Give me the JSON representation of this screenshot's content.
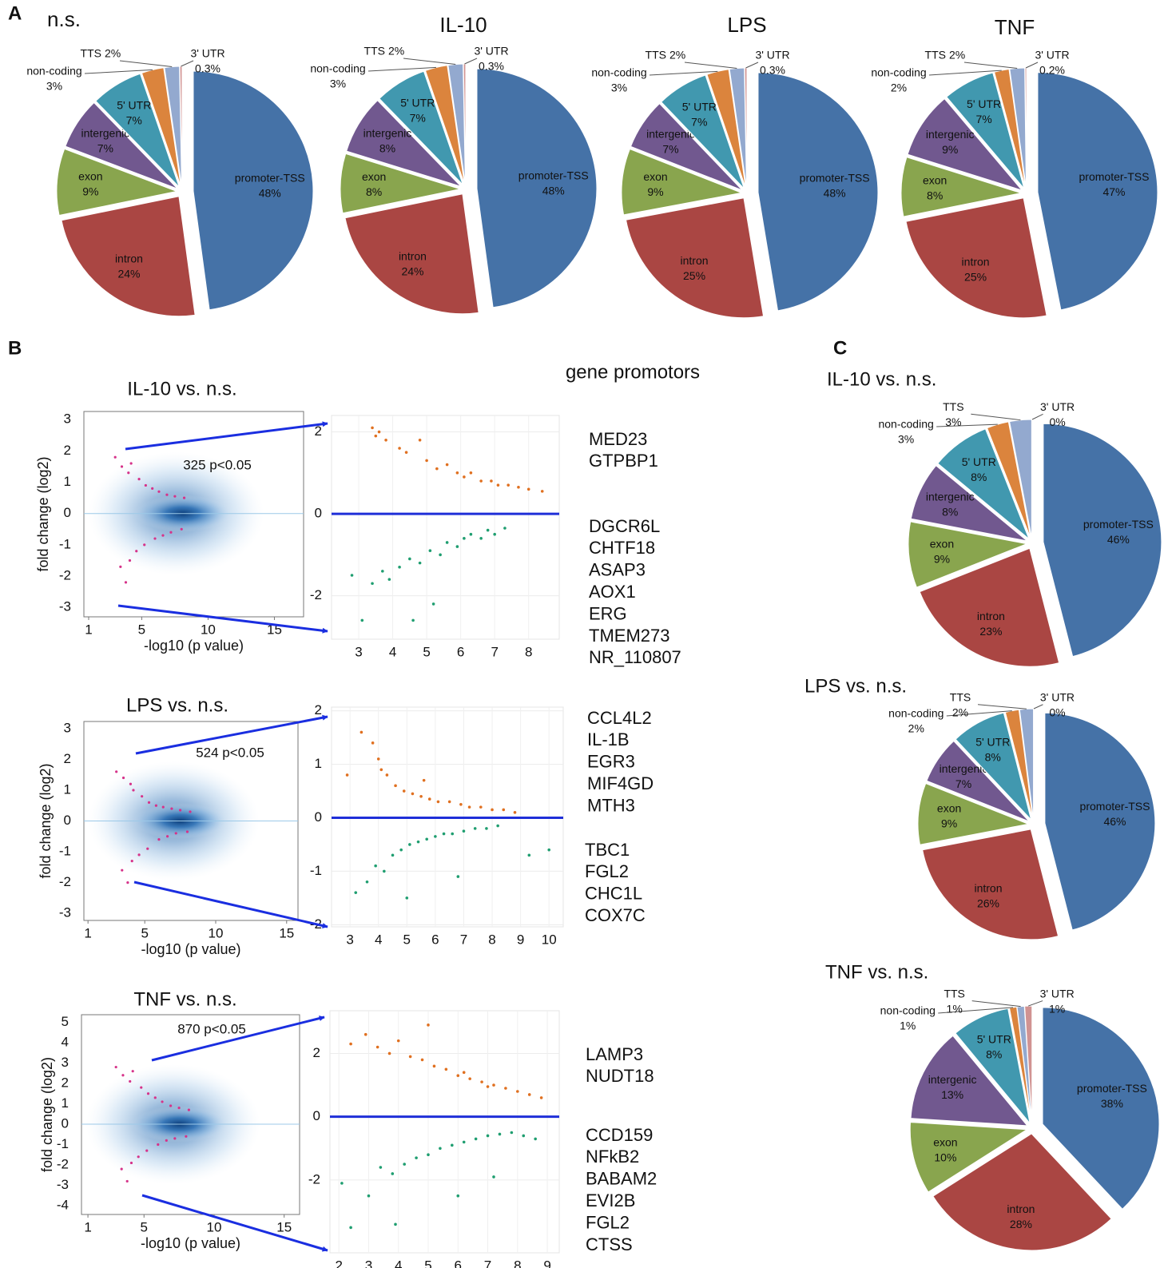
{
  "panels": [
    "A",
    "B",
    "C"
  ],
  "heading": "gene promotors",
  "genes": [
    {
      "up": [
        "MED23",
        "GTPBP1"
      ],
      "down": [
        "DGCR6L",
        "CHTF18",
        "ASAP3",
        "AOX1",
        "ERG",
        "TMEM273",
        "NR_110807"
      ]
    },
    {
      "up": [
        "CCL4L2",
        "IL-1B",
        "EGR3",
        "MIF4GD",
        "MTH3"
      ],
      "down": [
        "TBC1",
        "FGL2",
        "CHC1L",
        "COX7C"
      ]
    },
    {
      "up": [
        "LAMP3",
        "NUDT18"
      ],
      "down": [
        "CCD159",
        "NFkB2",
        "BABAM2",
        "EVI2B",
        "FGL2",
        "CTSS"
      ]
    }
  ],
  "chart_data": [
    {
      "type": "pie",
      "title": "n.s.",
      "categories": [
        "promoter-TSS",
        "intron",
        "exon",
        "intergenic",
        "5' UTR",
        "non-coding",
        "TTS",
        "3' UTR"
      ],
      "values": [
        48,
        24,
        9,
        7,
        7,
        3,
        2,
        0.3
      ],
      "value_labels": [
        "48%",
        "24%",
        "9%",
        "7%",
        "7%",
        "3%",
        "2%",
        "0.3%"
      ],
      "colors": [
        "#4572a7",
        "#aa4643",
        "#89a54e",
        "#71588f",
        "#4198af",
        "#db843d",
        "#93a9cf",
        "#d19392"
      ]
    },
    {
      "type": "pie",
      "title": "IL-10",
      "categories": [
        "promoter-TSS",
        "intron",
        "exon",
        "intergenic",
        "5' UTR",
        "non-coding",
        "TTS",
        "3' UTR"
      ],
      "values": [
        48,
        24,
        8,
        8,
        7,
        3,
        2,
        0.3
      ],
      "value_labels": [
        "48%",
        "24%",
        "8%",
        "8%",
        "7%",
        "3%",
        "2%",
        "0.3%"
      ],
      "colors": [
        "#4572a7",
        "#aa4643",
        "#89a54e",
        "#71588f",
        "#4198af",
        "#db843d",
        "#93a9cf",
        "#d19392"
      ]
    },
    {
      "type": "pie",
      "title": "LPS",
      "categories": [
        "promoter-TSS",
        "intron",
        "exon",
        "intergenic",
        "5' UTR",
        "non-coding",
        "TTS",
        "3' UTR"
      ],
      "values": [
        48,
        25,
        9,
        7,
        7,
        3,
        2,
        0.3
      ],
      "value_labels": [
        "48%",
        "25%",
        "9%",
        "7%",
        "7%",
        "3%",
        "2%",
        "0.3%"
      ],
      "colors": [
        "#4572a7",
        "#aa4643",
        "#89a54e",
        "#71588f",
        "#4198af",
        "#db843d",
        "#93a9cf",
        "#d19392"
      ]
    },
    {
      "type": "pie",
      "title": "TNF",
      "categories": [
        "promoter-TSS",
        "intron",
        "exon",
        "intergenic",
        "5' UTR",
        "non-coding",
        "TTS",
        "3' UTR"
      ],
      "values": [
        47,
        25,
        8,
        9,
        7,
        2,
        2,
        0.2
      ],
      "value_labels": [
        "47%",
        "25%",
        "8%",
        "9%",
        "7%",
        "2%",
        "2%",
        "0.2%"
      ],
      "colors": [
        "#4572a7",
        "#aa4643",
        "#89a54e",
        "#71588f",
        "#4198af",
        "#db843d",
        "#93a9cf",
        "#d19392"
      ]
    },
    {
      "type": "density",
      "title": "IL-10 vs. n.s.",
      "xlabel": "-log10 (p value)",
      "ylabel": "fold change (log2)",
      "annotation": "325 p<0.05",
      "xlim": [
        0.64,
        17.2
      ],
      "ylim": [
        -3.3,
        3.26
      ],
      "xticks": [
        1,
        5,
        10,
        15
      ],
      "yticks": [
        -3,
        -2,
        -1,
        0,
        1,
        2,
        3
      ],
      "zero_line": "#9cc9e8",
      "series": [
        {
          "color": "#d6338a",
          "x": [
            3,
            3.5,
            4,
            4.2,
            4.8,
            5.3,
            5.8,
            6.3,
            6.9,
            7.5,
            8.2,
            3.4,
            4.1,
            4.6,
            5.2,
            6.0,
            6.6,
            7.2,
            3.8,
            8.0
          ],
          "values": [
            1.8,
            1.5,
            1.3,
            1.6,
            1.1,
            0.9,
            0.8,
            0.7,
            0.6,
            0.55,
            0.5,
            -1.7,
            -1.5,
            -1.2,
            -1.0,
            -0.8,
            -0.7,
            -0.6,
            -2.2,
            -0.5
          ]
        }
      ]
    },
    {
      "type": "density",
      "title": "LPS vs. n.s.",
      "xlabel": "-log10 (p value)",
      "ylabel": "fold change (log2)",
      "annotation": "524 p<0.05",
      "xlim": [
        0.71,
        15.8
      ],
      "ylim": [
        -3.23,
        3.23
      ],
      "xticks": [
        1,
        5,
        10,
        15
      ],
      "yticks": [
        -3,
        -2,
        -1,
        0,
        1,
        2,
        3
      ],
      "zero_line": "#9cc9e8",
      "series": [
        {
          "color": "#d6338a",
          "x": [
            3,
            3.5,
            4,
            4.2,
            4.8,
            5.3,
            5.8,
            6.3,
            6.9,
            7.5,
            8.2,
            3.4,
            4.1,
            4.6,
            5.2,
            6.0,
            6.6,
            7.2,
            3.8,
            8.0
          ],
          "values": [
            1.6,
            1.4,
            1.2,
            1.0,
            0.8,
            0.6,
            0.5,
            0.45,
            0.4,
            0.35,
            0.3,
            -1.6,
            -1.3,
            -1.1,
            -0.9,
            -0.6,
            -0.5,
            -0.4,
            -2.0,
            -0.35
          ]
        }
      ]
    },
    {
      "type": "density",
      "title": "TNF vs. n.s.",
      "xlabel": "-log10 (p value)",
      "ylabel": "fold change (log2)",
      "annotation": "870 p<0.05",
      "xlim": [
        0.54,
        16.1
      ],
      "ylim": [
        -4.43,
        5.37
      ],
      "xticks": [
        1,
        5,
        10,
        15
      ],
      "yticks": [
        -4,
        -3,
        -2,
        -1,
        0,
        1,
        2,
        3,
        4,
        5
      ],
      "zero_line": "#9cc9e8",
      "series": [
        {
          "color": "#d6338a",
          "x": [
            3,
            3.5,
            4,
            4.2,
            4.8,
            5.3,
            5.8,
            6.3,
            6.9,
            7.5,
            8.2,
            3.4,
            4.1,
            4.6,
            5.2,
            6.0,
            6.6,
            7.2,
            3.8,
            8.0
          ],
          "values": [
            2.8,
            2.4,
            2.1,
            2.6,
            1.8,
            1.5,
            1.3,
            1.1,
            0.9,
            0.8,
            0.7,
            -2.2,
            -1.9,
            -1.6,
            -1.3,
            -1.0,
            -0.8,
            -0.7,
            -2.8,
            -0.6
          ]
        }
      ]
    },
    {
      "type": "scatter",
      "xlim": [
        2.2,
        8.9
      ],
      "ylim": [
        -3.06,
        2.4
      ],
      "xticks": [
        3,
        4,
        5,
        6,
        7,
        8
      ],
      "yticks": [
        -2,
        0,
        2
      ],
      "grid": true,
      "zero_line": "#1f2fd8",
      "series": [
        {
          "color": "#e07020",
          "x": [
            3.4,
            3.6,
            3.8,
            3.5,
            4.2,
            4.4,
            4.8,
            5.0,
            5.3,
            5.6,
            5.9,
            6.1,
            6.3,
            6.6,
            6.9,
            7.1,
            7.4,
            7.7,
            8.0,
            8.4
          ],
          "values": [
            2.1,
            2.0,
            1.8,
            1.9,
            1.6,
            1.5,
            1.8,
            1.3,
            1.1,
            1.2,
            1.0,
            0.9,
            1.0,
            0.8,
            0.8,
            0.7,
            0.7,
            0.65,
            0.6,
            0.55
          ]
        },
        {
          "color": "#1f9e70",
          "x": [
            2.8,
            3.1,
            3.4,
            3.7,
            3.9,
            4.2,
            4.5,
            4.8,
            5.1,
            5.4,
            5.6,
            5.9,
            6.1,
            6.3,
            6.6,
            6.8,
            7.0,
            7.3,
            4.6,
            5.2
          ],
          "values": [
            -1.5,
            -2.6,
            -1.7,
            -1.4,
            -1.6,
            -1.3,
            -1.1,
            -1.2,
            -0.9,
            -1.0,
            -0.7,
            -0.8,
            -0.6,
            -0.5,
            -0.6,
            -0.4,
            -0.5,
            -0.35,
            -2.6,
            -2.2
          ]
        }
      ]
    },
    {
      "type": "scatter",
      "xlim": [
        2.35,
        10.5
      ],
      "ylim": [
        -2.04,
        2.07
      ],
      "xticks": [
        3,
        4,
        5,
        6,
        7,
        8,
        9,
        10
      ],
      "yticks": [
        -2,
        -1,
        0,
        1,
        2
      ],
      "grid": true,
      "zero_line": "#1f2fd8",
      "series": [
        {
          "color": "#e07020",
          "x": [
            2.9,
            3.4,
            3.8,
            4.1,
            4.3,
            4.6,
            4.9,
            5.2,
            5.5,
            5.8,
            6.1,
            6.5,
            6.9,
            7.2,
            7.6,
            8.0,
            8.4,
            8.8,
            4.0,
            5.6
          ],
          "values": [
            0.8,
            1.6,
            1.4,
            0.9,
            0.8,
            0.6,
            0.5,
            0.45,
            0.4,
            0.35,
            0.3,
            0.3,
            0.25,
            0.2,
            0.2,
            0.15,
            0.15,
            0.1,
            1.1,
            0.7
          ]
        },
        {
          "color": "#1f9e70",
          "x": [
            3.2,
            3.6,
            3.9,
            4.2,
            4.5,
            4.8,
            5.1,
            5.4,
            5.7,
            6.0,
            6.3,
            6.6,
            7.0,
            7.4,
            7.8,
            8.2,
            9.3,
            10.0,
            5.0,
            6.8
          ],
          "values": [
            -1.4,
            -1.2,
            -0.9,
            -1.0,
            -0.7,
            -0.6,
            -0.5,
            -0.45,
            -0.4,
            -0.35,
            -0.3,
            -0.3,
            -0.25,
            -0.2,
            -0.2,
            -0.15,
            -0.7,
            -0.6,
            -1.5,
            -1.1
          ]
        }
      ]
    },
    {
      "type": "scatter",
      "xlim": [
        1.7,
        9.4
      ],
      "ylim": [
        -4.3,
        3.35
      ],
      "xticks": [
        2,
        3,
        4,
        5,
        6,
        7,
        8,
        9
      ],
      "yticks": [
        -2,
        0,
        2
      ],
      "grid": true,
      "zero_line": "#1f2fd8",
      "series": [
        {
          "color": "#e07020",
          "x": [
            2.4,
            2.9,
            3.3,
            3.7,
            4.0,
            4.4,
            4.8,
            5.2,
            5.6,
            6.0,
            6.4,
            6.8,
            7.2,
            7.6,
            8.0,
            8.4,
            8.8,
            5.0,
            6.2,
            7.0
          ],
          "values": [
            2.3,
            2.6,
            2.2,
            2.0,
            2.4,
            1.9,
            1.8,
            1.6,
            1.5,
            1.3,
            1.2,
            1.1,
            1.0,
            0.9,
            0.8,
            0.7,
            0.6,
            2.9,
            1.4,
            0.95
          ]
        },
        {
          "color": "#1f9e70",
          "x": [
            2.1,
            3.0,
            3.4,
            3.8,
            4.2,
            4.6,
            5.0,
            5.4,
            5.8,
            6.2,
            6.6,
            7.0,
            7.4,
            7.8,
            8.2,
            8.6,
            2.4,
            3.9,
            6.0,
            7.2
          ],
          "values": [
            -2.1,
            -2.5,
            -1.6,
            -1.8,
            -1.5,
            -1.3,
            -1.2,
            -1.0,
            -0.9,
            -0.8,
            -0.7,
            -0.6,
            -0.55,
            -0.5,
            -0.6,
            -0.7,
            -3.5,
            -3.4,
            -2.5,
            -1.9
          ]
        }
      ]
    },
    {
      "type": "pie",
      "title": "IL-10 vs. n.s.",
      "categories": [
        "promoter-TSS",
        "intron",
        "exon",
        "intergenic",
        "5' UTR",
        "non-coding",
        "TTS",
        "3' UTR"
      ],
      "values": [
        46,
        23,
        9,
        8,
        8,
        3,
        3,
        0
      ],
      "value_labels": [
        "46%",
        "23%",
        "9%",
        "8%",
        "8%",
        "3%",
        "3%",
        "0%"
      ],
      "colors": [
        "#4572a7",
        "#aa4643",
        "#89a54e",
        "#71588f",
        "#4198af",
        "#db843d",
        "#93a9cf",
        "#d19392"
      ]
    },
    {
      "type": "pie",
      "title": "LPS vs. n.s.",
      "categories": [
        "promoter-TSS",
        "intron",
        "exon",
        "intergenic",
        "5' UTR",
        "non-coding",
        "TTS",
        "3' UTR"
      ],
      "values": [
        46,
        26,
        9,
        7,
        8,
        2,
        2,
        0
      ],
      "value_labels": [
        "46%",
        "26%",
        "9%",
        "7%",
        "8%",
        "2%",
        "2%",
        "0%"
      ],
      "colors": [
        "#4572a7",
        "#aa4643",
        "#89a54e",
        "#71588f",
        "#4198af",
        "#db843d",
        "#93a9cf",
        "#d19392"
      ]
    },
    {
      "type": "pie",
      "title": "TNF vs. n.s.",
      "categories": [
        "promoter-TSS",
        "intron",
        "exon",
        "intergenic",
        "5' UTR",
        "non-coding",
        "TTS",
        "3' UTR"
      ],
      "values": [
        38,
        28,
        10,
        13,
        8,
        1,
        1,
        1
      ],
      "value_labels": [
        "38%",
        "28%",
        "10%",
        "13%",
        "8%",
        "1%",
        "1%",
        "1%"
      ],
      "colors": [
        "#4572a7",
        "#aa4643",
        "#89a54e",
        "#71588f",
        "#4198af",
        "#db843d",
        "#93a9cf",
        "#d19392"
      ]
    }
  ]
}
